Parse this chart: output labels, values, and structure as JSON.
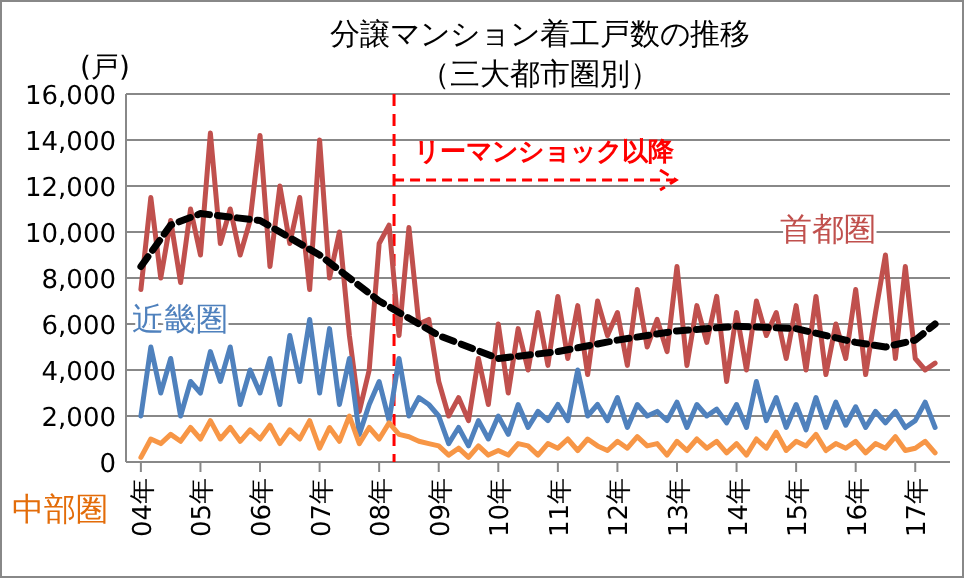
{
  "chart_data": {
    "type": "line",
    "title": "分譲マンション着工戸数の推移",
    "subtitle": "（三大都市圏別）",
    "ylabel": "(戸)",
    "x": [
      "2004-01",
      "2004-03",
      "2004-05",
      "2004-07",
      "2004-09",
      "2004-11",
      "2005-01",
      "2005-03",
      "2005-05",
      "2005-07",
      "2005-09",
      "2005-11",
      "2006-01",
      "2006-03",
      "2006-05",
      "2006-07",
      "2006-09",
      "2006-11",
      "2007-01",
      "2007-03",
      "2007-05",
      "2007-07",
      "2007-09",
      "2007-11",
      "2008-01",
      "2008-03",
      "2008-05",
      "2008-07",
      "2008-09",
      "2008-11",
      "2009-01",
      "2009-03",
      "2009-05",
      "2009-07",
      "2009-09",
      "2009-11",
      "2010-01",
      "2010-03",
      "2010-05",
      "2010-07",
      "2010-09",
      "2010-11",
      "2011-01",
      "2011-03",
      "2011-05",
      "2011-07",
      "2011-09",
      "2011-11",
      "2012-01",
      "2012-03",
      "2012-05",
      "2012-07",
      "2012-09",
      "2012-11",
      "2013-01",
      "2013-03",
      "2013-05",
      "2013-07",
      "2013-09",
      "2013-11",
      "2014-01",
      "2014-03",
      "2014-05",
      "2014-07",
      "2014-09",
      "2014-11",
      "2015-01",
      "2015-03",
      "2015-05",
      "2015-07",
      "2015-09",
      "2015-11",
      "2016-01",
      "2016-03",
      "2016-05",
      "2016-07",
      "2016-09",
      "2016-11",
      "2017-01",
      "2017-03",
      "2017-05"
    ],
    "series": [
      {
        "name": "首都圏",
        "color": "#c0504d",
        "values": [
          7500,
          11500,
          8000,
          10500,
          7800,
          11000,
          9000,
          14300,
          9500,
          11000,
          9000,
          10500,
          14200,
          8500,
          12000,
          9500,
          11500,
          7500,
          14000,
          8000,
          10000,
          5500,
          2200,
          4000,
          9500,
          10300,
          5500,
          10200,
          6000,
          6200,
          3500,
          2000,
          2800,
          1800,
          4500,
          2500,
          6000,
          3000,
          5800,
          4000,
          6500,
          4200,
          7200,
          4500,
          6800,
          3800,
          7000,
          5500,
          6500,
          4200,
          7500,
          5000,
          6200,
          4800,
          8500,
          4200,
          6800,
          5200,
          7200,
          3500,
          6500,
          4000,
          7000,
          5500,
          6500,
          4500,
          6800,
          4000,
          7200,
          3800,
          6000,
          4500,
          7500,
          3800,
          6500,
          9000,
          4500,
          8500,
          4500,
          4000,
          4300
        ]
      },
      {
        "name": "近畿圏",
        "color": "#4f81bd",
        "values": [
          2000,
          5000,
          3000,
          4500,
          2000,
          3500,
          3000,
          4800,
          3500,
          5000,
          2500,
          4000,
          3000,
          4500,
          2500,
          5500,
          3500,
          6200,
          3000,
          5800,
          2500,
          4500,
          1200,
          2500,
          3500,
          1800,
          4500,
          2000,
          2800,
          2500,
          2000,
          800,
          1500,
          700,
          1800,
          1000,
          2000,
          1200,
          2500,
          1500,
          2200,
          1800,
          2500,
          1800,
          4000,
          2000,
          2500,
          1800,
          2800,
          1500,
          2500,
          2000,
          2200,
          1800,
          2600,
          1500,
          2500,
          2000,
          2300,
          1700,
          2500,
          1500,
          3500,
          1800,
          2800,
          1500,
          2500,
          1400,
          2800,
          1500,
          2600,
          1600,
          2400,
          1500,
          2200,
          1700,
          2200,
          1500,
          1800,
          2600,
          1500
        ]
      },
      {
        "name": "中部圏",
        "color": "#f79646",
        "values": [
          200,
          1000,
          800,
          1200,
          900,
          1500,
          1000,
          1800,
          1000,
          1500,
          900,
          1400,
          1000,
          1600,
          800,
          1400,
          1000,
          1800,
          600,
          1500,
          900,
          2000,
          800,
          1500,
          1000,
          1700,
          1200,
          1100,
          900,
          800,
          700,
          300,
          600,
          200,
          700,
          300,
          500,
          300,
          800,
          700,
          300,
          800,
          600,
          1000,
          500,
          1000,
          700,
          500,
          900,
          600,
          1100,
          700,
          800,
          300,
          900,
          500,
          1000,
          600,
          900,
          400,
          800,
          300,
          1000,
          600,
          1300,
          500,
          900,
          700,
          1200,
          500,
          800,
          600,
          900,
          400,
          800,
          600,
          1100,
          500,
          600,
          900,
          400
        ]
      },
      {
        "type": "line",
        "color": "#000000",
        "line_style": "dashed",
        "x": [
          "2004-01",
          "2004-07",
          "2005-01",
          "2006-01",
          "2007-01",
          "2008-01",
          "2009-01",
          "2010-01",
          "2011-01",
          "2012-01",
          "2013-01",
          "2014-01",
          "2015-01",
          "2016-01",
          "2016-07",
          "2017-01",
          "2017-05"
        ],
        "values": [
          8500,
          10300,
          10800,
          10500,
          9000,
          7000,
          5500,
          4500,
          4800,
          5300,
          5700,
          5900,
          5800,
          5200,
          5000,
          5300,
          6000
        ]
      }
    ],
    "ref_lines": [
      {
        "axis": "x",
        "value": "2008-04",
        "label": "リーマンショック以降",
        "color": "#ff0000",
        "line_style": "dashed"
      }
    ],
    "xlim": [
      "2003-10",
      "2017-08"
    ],
    "xticks": [
      {
        "value": "2004",
        "label": "04年"
      },
      {
        "value": "2005",
        "label": "05年"
      },
      {
        "value": "2006",
        "label": "06年"
      },
      {
        "value": "2007",
        "label": "07年"
      },
      {
        "value": "2008",
        "label": "08年"
      },
      {
        "value": "2009",
        "label": "09年"
      },
      {
        "value": "2010",
        "label": "10年"
      },
      {
        "value": "2011",
        "label": "11年"
      },
      {
        "value": "2012",
        "label": "12年"
      },
      {
        "value": "2013",
        "label": "13年"
      },
      {
        "value": "2014",
        "label": "14年"
      },
      {
        "value": "2015",
        "label": "15年"
      },
      {
        "value": "2016",
        "label": "16年"
      },
      {
        "value": "2017",
        "label": "17年"
      }
    ],
    "ylim": [
      0,
      16000
    ],
    "yticks": [
      0,
      {
        "value": 2000,
        "label": "2,000"
      },
      {
        "value": 4000,
        "label": "4,000"
      },
      {
        "value": 6000,
        "label": "6,000"
      },
      {
        "value": 8000,
        "label": "8,000"
      },
      {
        "value": 10000,
        "label": "10,000"
      },
      {
        "value": 12000,
        "label": "12,000"
      },
      {
        "value": 14000,
        "label": "14,000"
      },
      {
        "value": 16000,
        "label": "16,000"
      }
    ],
    "grid": "y",
    "legend": false,
    "marker": "none",
    "line_style": "solid"
  }
}
